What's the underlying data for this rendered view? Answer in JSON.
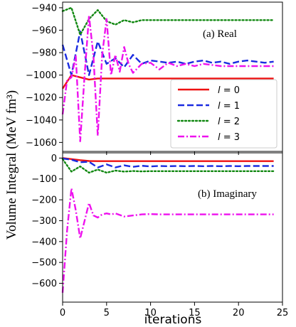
{
  "figure": {
    "ylabel": "Volume Integral (MeV fm³)",
    "xlabel": "iterations",
    "legend_order": [
      "l = 0",
      "l = 1",
      "l = 2",
      "l = 3"
    ]
  },
  "chart_data": [
    {
      "type": "line",
      "panel_label": "(a) Real",
      "xlim": [
        0,
        25
      ],
      "ylim": [
        -1068,
        -935
      ],
      "x_ticks": [
        0,
        5,
        10,
        15,
        20,
        25
      ],
      "y_ticks": [
        -1060,
        -1040,
        -1020,
        -1000,
        -980,
        -960,
        -940
      ],
      "legend_placement": "lower-right",
      "grid": false,
      "series": [
        {
          "name": "l = 0",
          "color": "#ee1111",
          "style": "solid",
          "x": [
            0,
            1,
            2,
            3,
            4,
            5,
            6,
            7,
            8,
            9,
            10,
            11,
            12,
            13,
            14,
            15,
            16,
            17,
            18,
            19,
            20,
            21,
            22,
            23,
            24
          ],
          "y": [
            -1012,
            -1000,
            -1002,
            -1004,
            -1003,
            -1003,
            -1003,
            -1003,
            -1003,
            -1003,
            -1003,
            -1003,
            -1003,
            -1003,
            -1003,
            -1003,
            -1003,
            -1003,
            -1003,
            -1003,
            -1003,
            -1003,
            -1003,
            -1003,
            -1003
          ]
        },
        {
          "name": "l = 1",
          "color": "#1a2be0",
          "style": "dashed",
          "x": [
            0,
            1,
            2,
            3,
            4,
            5,
            6,
            7,
            8,
            9,
            10,
            11,
            12,
            13,
            14,
            15,
            16,
            17,
            18,
            19,
            20,
            21,
            22,
            23,
            24
          ],
          "y": [
            -973,
            -1000,
            -961,
            -1000,
            -970,
            -990,
            -985,
            -993,
            -982,
            -990,
            -987,
            -988,
            -989,
            -988,
            -990,
            -988,
            -987,
            -989,
            -988,
            -990,
            -988,
            -987,
            -988,
            -989,
            -988
          ]
        },
        {
          "name": "l = 2",
          "color": "#118811",
          "style": "dotted",
          "x": [
            0,
            1,
            2,
            3,
            4,
            5,
            6,
            7,
            8,
            9,
            10,
            11,
            12,
            13,
            14,
            15,
            16,
            17,
            18,
            19,
            20,
            21,
            22,
            23,
            24
          ],
          "y": [
            -943,
            -940,
            -964,
            -950,
            -942,
            -952,
            -955,
            -951,
            -953,
            -951,
            -951,
            -951,
            -951,
            -951,
            -951,
            -951,
            -951,
            -951,
            -951,
            -951,
            -951,
            -951,
            -951,
            -951,
            -951
          ]
        },
        {
          "name": "l = 3",
          "color": "#ee11ee",
          "style": "dashdot",
          "x": [
            0,
            0.5,
            1,
            1.5,
            2,
            2.5,
            3,
            3.5,
            4,
            4.5,
            5,
            5.5,
            6,
            6.5,
            7,
            7.5,
            8,
            9,
            10,
            11,
            12,
            13,
            14,
            15,
            16,
            17,
            18,
            19,
            20,
            21,
            22,
            23,
            24
          ],
          "y": [
            -1035,
            -1005,
            -1002,
            -983,
            -1059,
            -1000,
            -947,
            -983,
            -1054,
            -982,
            -950,
            -1000,
            -982,
            -997,
            -975,
            -990,
            -998,
            -990,
            -989,
            -995,
            -989,
            -992,
            -990,
            -992,
            -990,
            -991,
            -992,
            -992,
            -992,
            -992,
            -992,
            -992,
            -992
          ]
        }
      ]
    },
    {
      "type": "line",
      "panel_label": "(b) Imaginary",
      "xlim": [
        0,
        25
      ],
      "ylim": [
        -690,
        25
      ],
      "x_ticks": [
        0,
        5,
        10,
        15,
        20,
        25
      ],
      "y_ticks": [
        -600,
        -500,
        -400,
        -300,
        -200,
        -100,
        0
      ],
      "grid": false,
      "series": [
        {
          "name": "l = 0",
          "color": "#ee1111",
          "style": "solid",
          "x": [
            0,
            1,
            2,
            3,
            4,
            5,
            6,
            7,
            8,
            9,
            10,
            11,
            12,
            13,
            14,
            15,
            16,
            17,
            18,
            19,
            20,
            21,
            22,
            23,
            24
          ],
          "y": [
            0,
            -5,
            -10,
            -14,
            -15,
            -15,
            -15,
            -15,
            -15,
            -15,
            -15,
            -15,
            -15,
            -15,
            -15,
            -15,
            -15,
            -15,
            -15,
            -15,
            -15,
            -15,
            -15,
            -15,
            -15
          ]
        },
        {
          "name": "l = 1",
          "color": "#1a2be0",
          "style": "dashed",
          "x": [
            0,
            1,
            2,
            3,
            4,
            5,
            6,
            7,
            8,
            9,
            10,
            11,
            12,
            13,
            14,
            15,
            16,
            17,
            18,
            19,
            20,
            21,
            22,
            23,
            24
          ],
          "y": [
            -2,
            -8,
            -20,
            -18,
            -45,
            -30,
            -45,
            -35,
            -42,
            -37,
            -40,
            -38,
            -39,
            -38,
            -39,
            -38,
            -39,
            -38,
            -39,
            -38,
            -39,
            -38,
            -38,
            -38,
            -38
          ]
        },
        {
          "name": "l = 2",
          "color": "#118811",
          "style": "dotted",
          "x": [
            0,
            1,
            2,
            3,
            4,
            5,
            6,
            7,
            8,
            9,
            10,
            11,
            12,
            13,
            14,
            15,
            16,
            17,
            18,
            19,
            20,
            21,
            22,
            23,
            24
          ],
          "y": [
            -5,
            -65,
            -40,
            -70,
            -55,
            -70,
            -60,
            -65,
            -62,
            -64,
            -63,
            -63,
            -63,
            -63,
            -63,
            -63,
            -63,
            -63,
            -63,
            -63,
            -63,
            -63,
            -63,
            -63,
            -63
          ]
        },
        {
          "name": "l = 3",
          "color": "#ee11ee",
          "style": "dashdot",
          "x": [
            0,
            0.5,
            1,
            1.5,
            2,
            2.5,
            3,
            3.5,
            4,
            4.5,
            5,
            5.5,
            6,
            7,
            8,
            9,
            10,
            11,
            12,
            13,
            14,
            15,
            16,
            17,
            18,
            19,
            20,
            21,
            22,
            23,
            24
          ],
          "y": [
            -645,
            -350,
            -145,
            -250,
            -385,
            -300,
            -215,
            -275,
            -285,
            -270,
            -265,
            -270,
            -265,
            -280,
            -275,
            -270,
            -268,
            -270,
            -270,
            -270,
            -270,
            -270,
            -270,
            -270,
            -270,
            -270,
            -270,
            -270,
            -270,
            -270,
            -270
          ]
        }
      ]
    }
  ]
}
